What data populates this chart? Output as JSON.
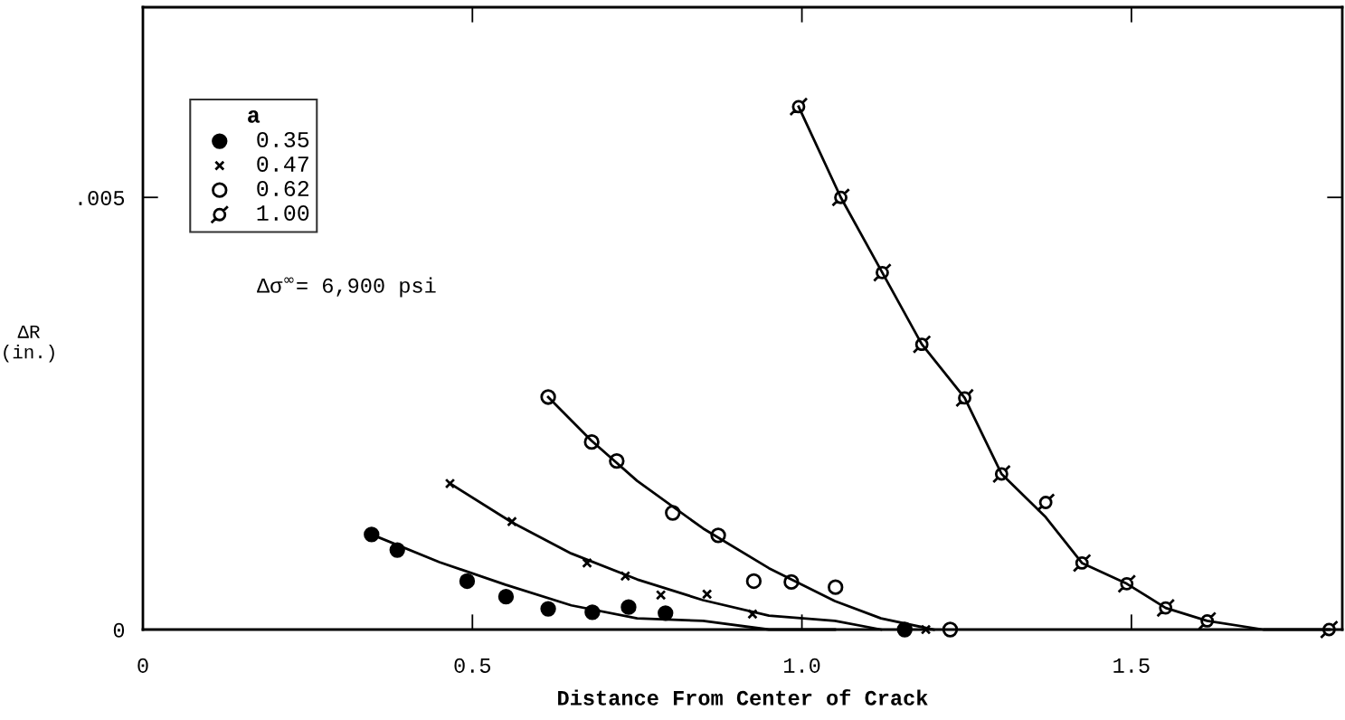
{
  "chart_data": {
    "type": "scatter",
    "xlabel": "Distance From Center of Crack",
    "ylabel": "ΔR\n(in.)",
    "legend_title": "a",
    "legend": "top left",
    "annotations": [
      {
        "text": "Δσ$^{∞}$= 6,900 psi"
      }
    ],
    "xlim": [
      0,
      1.82
    ],
    "xticks": [
      0,
      0.5,
      {
        "value": 1.0,
        "label": "1.0"
      },
      1.5
    ],
    "ylim": [
      0,
      0.0072
    ],
    "yticks": [
      0,
      {
        "value": 0.005,
        "label": ".005"
      }
    ],
    "grid": false,
    "series": [
      {
        "name": "0.35",
        "marker": "circle",
        "color": "#000000",
        "x": [
          0.347,
          0.386,
          0.492,
          0.551,
          0.615,
          0.682,
          0.737,
          0.793,
          1.156
        ],
        "values": [
          0.0011,
          0.00092,
          0.00056,
          0.00038,
          0.00024,
          0.0002,
          0.00026,
          0.00019,
          0
        ]
      },
      {
        "name": "0.47",
        "marker": "cross",
        "color": "#000000",
        "x": [
          0.466,
          0.56,
          0.674,
          0.732,
          0.786,
          0.856,
          0.925,
          1.188
        ],
        "values": [
          0.00169,
          0.00125,
          0.00077,
          0.00062,
          0.0004,
          0.00041,
          0.00018,
          0
        ]
      },
      {
        "name": "0.62",
        "marker": "circle",
        "color": "#000000",
        "x": [
          0.615,
          0.681,
          0.719,
          0.804,
          0.873,
          0.927,
          0.984,
          1.051,
          1.225
        ],
        "values": [
          0.00269,
          0.00217,
          0.00195,
          0.00135,
          0.00109,
          0.00056,
          0.00055,
          0.00049,
          0
        ]
      },
      {
        "name": "1.00",
        "color": "#000000",
        "x": [
          0.995,
          1.059,
          1.122,
          1.182,
          1.247,
          1.303,
          1.37,
          1.425,
          1.493,
          1.552,
          1.615,
          1.8
        ],
        "values": [
          0.00605,
          0.005,
          0.00413,
          0.0033,
          0.00268,
          0.0018,
          0.00147,
          0.00077,
          0.00053,
          0.00025,
          0.0001,
          0
        ]
      },
      {
        "type": "line",
        "color": "#000000",
        "line_style": "solid",
        "x": [
          0.347,
          0.45,
          0.55,
          0.65,
          0.75,
          0.85,
          0.95,
          1.05
        ],
        "values": [
          0.0011,
          0.00078,
          0.00052,
          0.00028,
          0.00013,
          0.0001,
          0,
          0
        ]
      },
      {
        "type": "line",
        "color": "#000000",
        "line_style": "solid",
        "x": [
          0.466,
          0.56,
          0.65,
          0.75,
          0.85,
          0.95,
          1.05,
          1.12
        ],
        "values": [
          0.00169,
          0.00124,
          0.00088,
          0.00058,
          0.00034,
          0.00016,
          0.0001,
          0
        ]
      },
      {
        "type": "line",
        "color": "#000000",
        "line_style": "solid",
        "x": [
          0.615,
          0.68,
          0.75,
          0.85,
          0.95,
          1.05,
          1.12,
          1.2
        ],
        "values": [
          0.00269,
          0.00219,
          0.00172,
          0.00117,
          0.00071,
          0.00033,
          0.00013,
          0
        ]
      },
      {
        "type": "line",
        "color": "#000000",
        "line_style": "solid",
        "x": [
          0.995,
          1.059,
          1.122,
          1.182,
          1.247,
          1.303,
          1.37,
          1.425,
          1.493,
          1.552,
          1.615,
          1.7,
          1.8
        ],
        "values": [
          0.00605,
          0.005,
          0.00413,
          0.0033,
          0.00268,
          0.0018,
          0.0013,
          0.00077,
          0.00053,
          0.00025,
          0.0001,
          0,
          0
        ]
      }
    ]
  }
}
